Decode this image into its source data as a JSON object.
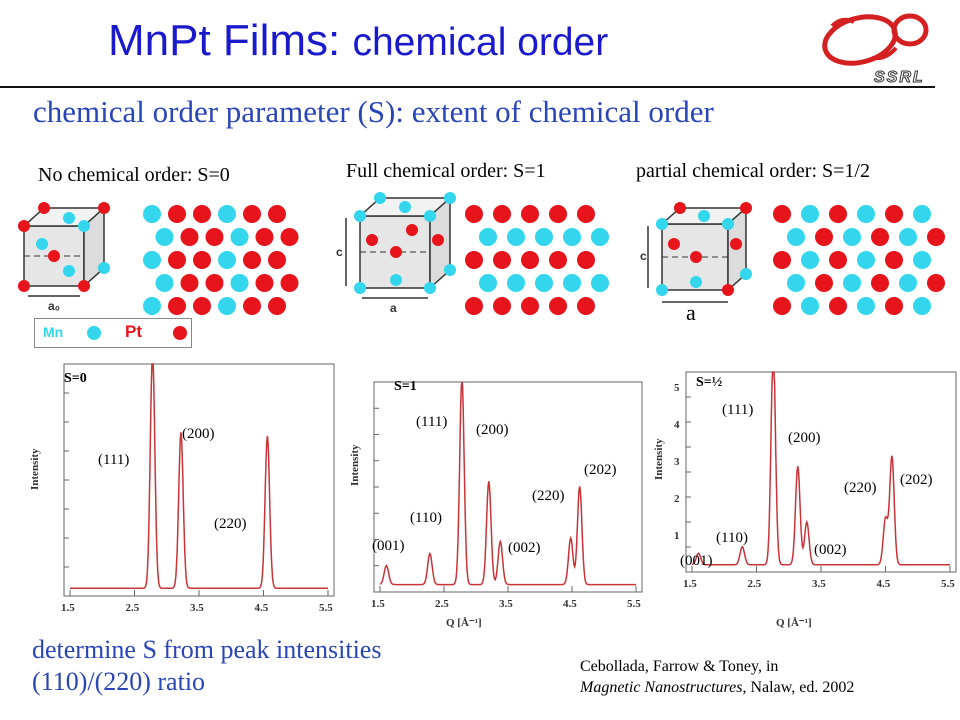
{
  "title_part1": "MnPt Films:",
  "title_part2": "chemical order",
  "logo_text": "SSRL",
  "subtitle": "chemical order parameter (S): extent of chemical order",
  "panels": [
    {
      "heading": "No chemical order: S=0",
      "axis_a": "a₀"
    },
    {
      "heading": "Full chemical order: S=1",
      "axis_a": "a",
      "axis_c": "c"
    },
    {
      "heading": "partial chemical order: S=1/2",
      "axis_a": "a",
      "axis_c": "c"
    }
  ],
  "legend": {
    "mn": "Mn",
    "pt": "Pt",
    "mn_color": "#33d6ec",
    "pt_color": "#e8141c"
  },
  "plots": [
    {
      "label": "S=0",
      "ylabel": "Intensity",
      "xticks": [
        "1.5",
        "2.5",
        "3.5",
        "4.5",
        "5.5"
      ],
      "peaks": [
        {
          "hkl": "(111)"
        },
        {
          "hkl": "(200)"
        },
        {
          "hkl": "(220)"
        }
      ]
    },
    {
      "label": "S=1",
      "ylabel": "Intensity",
      "xlabel": "Q [Å⁻¹]",
      "xticks": [
        "1.5",
        "2.5",
        "3.5",
        "4.5",
        "5.5"
      ],
      "peaks": [
        {
          "hkl": "(001)"
        },
        {
          "hkl": "(110)"
        },
        {
          "hkl": "(111)"
        },
        {
          "hkl": "(200)"
        },
        {
          "hkl": "(002)"
        },
        {
          "hkl": "(220)"
        },
        {
          "hkl": "(202)"
        }
      ]
    },
    {
      "label": "S=½",
      "ylabel": "Intensity",
      "xlabel": "Q [Å⁻¹]",
      "xticks": [
        "1.5",
        "2.5",
        "3.5",
        "4.5",
        "5.5"
      ],
      "yticks": [
        "1",
        "2",
        "3",
        "4",
        "5"
      ],
      "peaks": [
        {
          "hkl": "(001)"
        },
        {
          "hkl": "(110)"
        },
        {
          "hkl": "(111)"
        },
        {
          "hkl": "(200)"
        },
        {
          "hkl": "(002)"
        },
        {
          "hkl": "(220)"
        },
        {
          "hkl": "(202)"
        }
      ]
    }
  ],
  "bottom_line1": "determine S from peak intensities",
  "bottom_line2": "(110)/(220) ratio",
  "citation_line1": "Cebollada, Farrow & Toney, in",
  "citation_book": "Magnetic Nanostructures",
  "citation_rest": ", Nalaw, ed. 2002"
}
